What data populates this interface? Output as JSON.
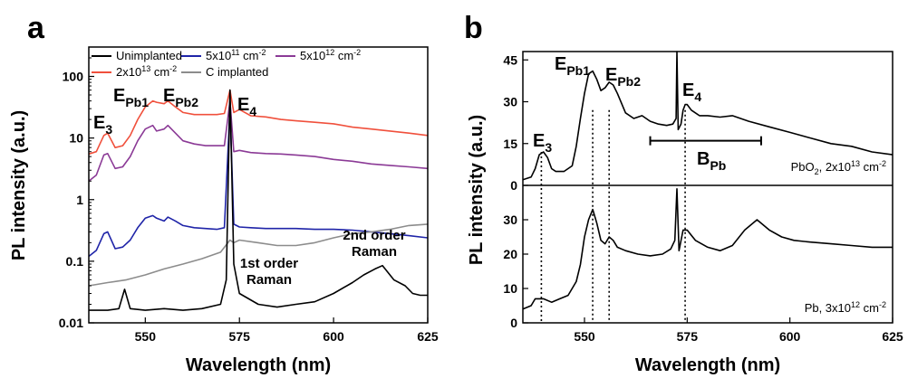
{
  "chart_data": [
    {
      "panel": "a",
      "type": "line",
      "xlabel": "Wavelength (nm)",
      "ylabel": "PL intensity (a.u.)",
      "xlim": [
        535,
        625
      ],
      "ylim": [
        0.01,
        300
      ],
      "yscale": "log",
      "xticks": [
        550,
        575,
        600,
        625
      ],
      "yticks": [
        {
          "value": 0.01,
          "label": "0.01"
        },
        {
          "value": 0.1,
          "label": "0.1"
        },
        {
          "value": 1,
          "label": "1"
        },
        {
          "value": 10,
          "label": "10"
        },
        {
          "value": 100,
          "label": "100"
        }
      ],
      "legend": [
        {
          "main": "Unimplanted",
          "sup": "",
          "tail": "",
          "color": "#000000"
        },
        {
          "main": "5x10",
          "sup": "11",
          "tail": " cm",
          "sup2": "-2",
          "color": "#1f24a8"
        },
        {
          "main": "5x10",
          "sup": "12",
          "tail": " cm",
          "sup2": "-2",
          "color": "#8b3a96"
        },
        {
          "main": "2x10",
          "sup": "13",
          "tail": " cm",
          "sup2": "-2",
          "color": "#f0503c"
        },
        {
          "main": "C implanted",
          "sup": "",
          "tail": "",
          "color": "#8c8c8c"
        }
      ],
      "series": [
        {
          "legend_index": 3,
          "color": "#f0503c",
          "x": [
            535,
            537,
            539,
            540,
            542,
            544,
            546,
            548,
            550,
            552,
            553,
            555,
            556,
            558,
            560,
            563,
            566,
            569,
            571,
            572.5,
            573.5,
            575,
            578,
            582,
            586,
            590,
            595,
            600,
            605,
            610,
            615,
            620,
            625
          ],
          "y": [
            5.5,
            6,
            11,
            12,
            7,
            7.5,
            11,
            20,
            32,
            40,
            38,
            36,
            40,
            32,
            26,
            24,
            24,
            24,
            25,
            60,
            26,
            29,
            23,
            22,
            20,
            19,
            18,
            17,
            15,
            14,
            13,
            12,
            11
          ]
        },
        {
          "legend_index": 2,
          "color": "#8b3a96",
          "x": [
            535,
            537,
            539,
            540,
            542,
            544,
            546,
            548,
            550,
            552,
            553,
            555,
            556,
            558,
            560,
            563,
            566,
            569,
            571,
            572.5,
            573.5,
            575,
            578,
            582,
            586,
            590,
            595,
            600,
            605,
            610,
            615,
            620,
            625
          ],
          "y": [
            2,
            2.5,
            5.3,
            5.6,
            3.2,
            3.4,
            5,
            9,
            14,
            16,
            13,
            14,
            16,
            12,
            9,
            8,
            7.5,
            7.5,
            7.5,
            40,
            6,
            6.3,
            5.8,
            5.6,
            5.5,
            5.3,
            5,
            4.5,
            4.2,
            3.8,
            3.6,
            3.4,
            3.2
          ]
        },
        {
          "legend_index": 1,
          "color": "#1f24a8",
          "x": [
            535,
            537,
            539,
            540,
            542,
            544,
            546,
            548,
            550,
            552,
            553,
            555,
            556,
            558,
            560,
            563,
            566,
            569,
            571,
            572.5,
            573.5,
            575,
            578,
            582,
            586,
            590,
            595,
            600,
            605,
            610,
            615,
            620,
            625
          ],
          "y": [
            0.12,
            0.15,
            0.28,
            0.3,
            0.16,
            0.17,
            0.22,
            0.35,
            0.5,
            0.55,
            0.5,
            0.45,
            0.52,
            0.45,
            0.38,
            0.35,
            0.34,
            0.33,
            0.35,
            30,
            0.4,
            0.36,
            0.35,
            0.34,
            0.34,
            0.34,
            0.33,
            0.33,
            0.32,
            0.3,
            0.28,
            0.26,
            0.24
          ]
        },
        {
          "legend_index": 4,
          "color": "#8c8c8c",
          "x": [
            535,
            540,
            545,
            550,
            555,
            560,
            565,
            570,
            572.5,
            573.5,
            575,
            580,
            585,
            590,
            595,
            600,
            605,
            610,
            615,
            620,
            625
          ],
          "y": [
            0.04,
            0.045,
            0.05,
            0.06,
            0.075,
            0.09,
            0.11,
            0.14,
            0.22,
            0.2,
            0.22,
            0.2,
            0.18,
            0.18,
            0.2,
            0.24,
            0.28,
            0.3,
            0.33,
            0.38,
            0.4
          ]
        },
        {
          "legend_index": 0,
          "color": "#000000",
          "x": [
            535,
            540,
            543,
            544.5,
            546,
            550,
            555,
            560,
            565,
            570,
            571.5,
            572.5,
            573.5,
            575,
            580,
            585,
            590,
            595,
            600,
            605,
            608,
            611,
            613,
            616,
            619,
            621,
            623,
            625
          ],
          "y": [
            0.016,
            0.016,
            0.017,
            0.035,
            0.017,
            0.016,
            0.017,
            0.016,
            0.017,
            0.02,
            0.05,
            60,
            0.09,
            0.03,
            0.02,
            0.018,
            0.02,
            0.022,
            0.03,
            0.045,
            0.06,
            0.075,
            0.085,
            0.05,
            0.04,
            0.03,
            0.028,
            0.028
          ]
        }
      ],
      "annotations": [
        {
          "main": "E",
          "sub": "3"
        },
        {
          "main": "E",
          "sub": "Pb1"
        },
        {
          "main": "E",
          "sub": "Pb2"
        },
        {
          "main": "E",
          "sub": "4"
        },
        {
          "line1": "1st order",
          "line2": "Raman"
        },
        {
          "line1": "2nd order",
          "line2": "Raman"
        }
      ]
    },
    {
      "panel": "b",
      "type": "line",
      "xlabel": "Wavelength (nm)",
      "ylabel": "PL intensity (a.u.)",
      "xlim": [
        535,
        625
      ],
      "xticks": [
        550,
        575,
        600,
        625
      ],
      "subpanels": [
        {
          "name": "top",
          "ylim": [
            0,
            48
          ],
          "yticks": [
            0,
            15,
            30,
            45
          ],
          "color": "#000000",
          "x": [
            535,
            537,
            538,
            539,
            540,
            541,
            542,
            543,
            545,
            547,
            548,
            549,
            550,
            551,
            552,
            553,
            554,
            555,
            556,
            557,
            558,
            560,
            562,
            564,
            566,
            568,
            570,
            571.5,
            572.3,
            572.5,
            572.8,
            573.5,
            574,
            574.5,
            575,
            576,
            578,
            580,
            583,
            586,
            590,
            595,
            600,
            605,
            610,
            615,
            620,
            625
          ],
          "y": [
            2,
            3,
            6,
            11,
            12,
            10,
            6,
            5,
            5,
            7,
            14,
            24,
            33,
            40,
            41,
            38,
            34,
            35,
            37,
            36,
            33,
            26,
            24,
            25,
            23,
            22,
            21.5,
            22,
            24,
            48,
            20,
            22,
            27,
            29,
            29,
            27,
            25,
            25,
            24.5,
            25,
            23,
            21,
            19,
            17,
            15,
            14,
            12,
            11
          ],
          "label_main": "PbO",
          "label_sub": "2",
          "label_mid": ", 2x10",
          "label_sup": "13",
          "label_tail": " cm",
          "label_sup2": "-2"
        },
        {
          "name": "bottom",
          "ylim": [
            0,
            40
          ],
          "yticks": [
            0,
            10,
            20,
            30
          ],
          "color": "#000000",
          "x": [
            535,
            537,
            538,
            539,
            540,
            542,
            544,
            546,
            548,
            549,
            550,
            551,
            552,
            553,
            554,
            555,
            556,
            557,
            558,
            560,
            563,
            566,
            569,
            571,
            572,
            572.5,
            573,
            574,
            575,
            577,
            580,
            583,
            586,
            589,
            592,
            595,
            598,
            601,
            605,
            610,
            615,
            620,
            625
          ],
          "y": [
            4,
            5,
            7,
            7,
            7,
            6,
            7,
            8,
            12,
            17,
            25,
            30,
            33,
            29,
            24,
            23,
            25,
            24,
            22,
            21,
            20,
            19.5,
            20,
            21.5,
            24,
            39,
            21,
            27,
            27,
            24,
            22,
            21,
            22.5,
            27,
            30,
            27,
            25,
            24,
            23.5,
            23,
            22.5,
            22,
            22
          ],
          "label_main": "Pb, 3x10",
          "label_sup": "12",
          "label_tail": " cm",
          "label_sup2": "-2"
        }
      ],
      "dotted_lines_x": [
        539.5,
        552,
        556,
        574.5
      ],
      "bpb_range": [
        566,
        593
      ],
      "annotations": [
        {
          "main": "E",
          "sub": "3"
        },
        {
          "main": "E",
          "sub": "Pb1"
        },
        {
          "main": "E",
          "sub": "Pb2"
        },
        {
          "main": "E",
          "sub": "4"
        },
        {
          "main": "B",
          "sub": "Pb"
        }
      ]
    }
  ]
}
